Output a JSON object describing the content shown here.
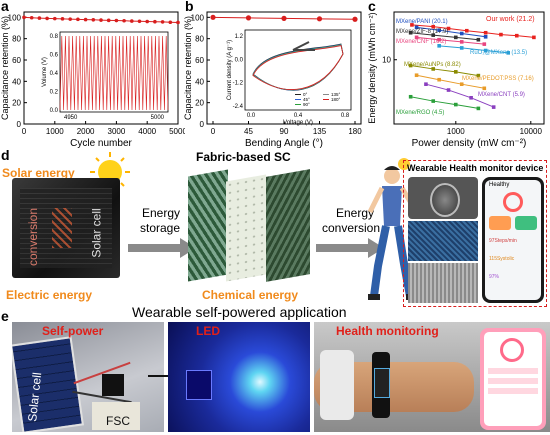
{
  "panels": {
    "a": "a",
    "b": "b",
    "c": "c",
    "d": "d",
    "e": "e"
  },
  "colors": {
    "accent_red": "#d81e1e",
    "orange": "#f08a1c",
    "dark": "#222222"
  },
  "chart_data": [
    {
      "type": "scatter",
      "id": "a",
      "xlabel": "Cycle number",
      "ylabel": "Capacitance retention (%)",
      "xlim": [
        0,
        5000
      ],
      "ylim": [
        0,
        105
      ],
      "xticks": [
        "0",
        "1000",
        "2000",
        "3000",
        "4000",
        "5000"
      ],
      "yticks": [
        "0",
        "20",
        "40",
        "60",
        "80",
        "100"
      ],
      "x": [
        0,
        250,
        500,
        750,
        1000,
        1250,
        1500,
        1750,
        2000,
        2250,
        2500,
        2750,
        3000,
        3250,
        3500,
        3750,
        4000,
        4250,
        4500,
        4750,
        5000
      ],
      "y": [
        100,
        99.6,
        99.3,
        99,
        98.8,
        98.6,
        98.3,
        98.1,
        97.9,
        97.7,
        97.4,
        97.2,
        97,
        96.8,
        96.5,
        96.3,
        96.1,
        95.9,
        95.7,
        95.4,
        95.2
      ],
      "inset": {
        "ylabel": "Volume (V)",
        "yticks": [
          "0.0",
          "0.2",
          "0.4",
          "0.6",
          "0.8"
        ],
        "xticks": [
          "4950",
          "5000"
        ],
        "ylim": [
          0,
          0.8
        ],
        "cycles": 30
      }
    },
    {
      "type": "scatter",
      "id": "b",
      "xlabel": "Bending Angle (°)",
      "ylabel": "Capacitance retention (%)",
      "xlim": [
        0,
        180
      ],
      "ylim": [
        0,
        105
      ],
      "xticks": [
        "0",
        "45",
        "90",
        "135",
        "180"
      ],
      "yticks": [
        "0",
        "20",
        "40",
        "60",
        "80",
        "100"
      ],
      "x": [
        0,
        45,
        90,
        135,
        180
      ],
      "y": [
        100,
        99.5,
        99,
        98.6,
        98.2
      ],
      "inset": {
        "xlabel": "Voltage (V)",
        "ylabel": "Current density (A g⁻¹)",
        "xticks": [
          "0.0",
          "0.4",
          "0.8"
        ],
        "yticks": [
          "1.2",
          "0.0",
          "-1.2",
          "-2.4"
        ],
        "legend": [
          "0°",
          "45°",
          "90°",
          "135°",
          "180°"
        ]
      }
    },
    {
      "type": "line",
      "id": "c",
      "xlabel": "Power density (mW cm⁻²)",
      "ylabel": "Energy density (mWh cm⁻²)",
      "xscale": "log",
      "yscale": "log",
      "xticks": [
        "1000",
        "10000"
      ],
      "yticks": [
        "10"
      ],
      "series": [
        {
          "name": "Our work (21.2)",
          "color": "#e8221e",
          "x": [
            260,
            500,
            800,
            1400,
            2500,
            4000,
            6500,
            11000
          ],
          "y": [
            21.2,
            20.4,
            19.6,
            18.7,
            17.9,
            17.2,
            16.8,
            16.2
          ]
        },
        {
          "name": "MXene/PANI (20.1)",
          "color": "#1f4fbf",
          "x": [
            300,
            600,
            1200,
            2500
          ],
          "y": [
            20.1,
            18.9,
            17.6,
            16.4
          ]
        },
        {
          "name": "MXene/ZIF-8 (17.9)",
          "color": "#333333",
          "x": [
            250,
            500,
            1000,
            2000
          ],
          "y": [
            17.9,
            17,
            16.2,
            15.4
          ]
        },
        {
          "name": "MXene/CNF (16.2)",
          "color": "#e8457f",
          "x": [
            300,
            600,
            1200,
            2400
          ],
          "y": [
            16.2,
            15.4,
            14.7,
            14
          ]
        },
        {
          "name": "RuO₂@MXene (13.5)",
          "color": "#2a9fd6",
          "x": [
            600,
            1200,
            2500,
            5000
          ],
          "y": [
            13.5,
            12.9,
            12.2,
            11.6
          ]
        },
        {
          "name": "MXene/AuNPs (8.82)",
          "color": "#8a8a00",
          "x": [
            250,
            500,
            1000,
            2000
          ],
          "y": [
            8.82,
            8.2,
            7.7,
            7.1
          ]
        },
        {
          "name": "MXene/PEDOT:PSS (7.16)",
          "color": "#e89c2a",
          "x": [
            300,
            600,
            1200,
            2400
          ],
          "y": [
            7.16,
            6.5,
            5.9,
            5.4
          ]
        },
        {
          "name": "MXene/CNT (5.9)",
          "color": "#8a3fbf",
          "x": [
            400,
            800,
            1600,
            3200
          ],
          "y": [
            5.9,
            5.2,
            4.4,
            3.6
          ]
        },
        {
          "name": "MXene/RGO (4.5)",
          "color": "#2a9f3a",
          "x": [
            250,
            500,
            1000,
            2000
          ],
          "y": [
            4.5,
            4.1,
            3.8,
            3.5
          ]
        }
      ]
    }
  ],
  "d": {
    "solar_energy": "Solar energy",
    "electric_energy": "Electric energy",
    "conversion": "conversion",
    "solar_cell": "Solar cell",
    "energy_storage_1": "Energy",
    "energy_storage_2": "storage",
    "fabric_sc": "Fabric-based SC",
    "chemical_energy": "Chemical energy",
    "energy_conversion_1": "Energy",
    "energy_conversion_2": "conversion",
    "wearable_device": "Wearable Health monitor device",
    "phone_title": "Healthy",
    "phone_rows": [
      "97Steps/min",
      "115Systolic",
      "97%"
    ]
  },
  "e": {
    "title": "Wearable self-powered application",
    "self_power": "Self-power",
    "solar_cell": "Solar cell",
    "fsc": "FSC",
    "led": "LED",
    "health_monitoring": "Health monitoring"
  }
}
